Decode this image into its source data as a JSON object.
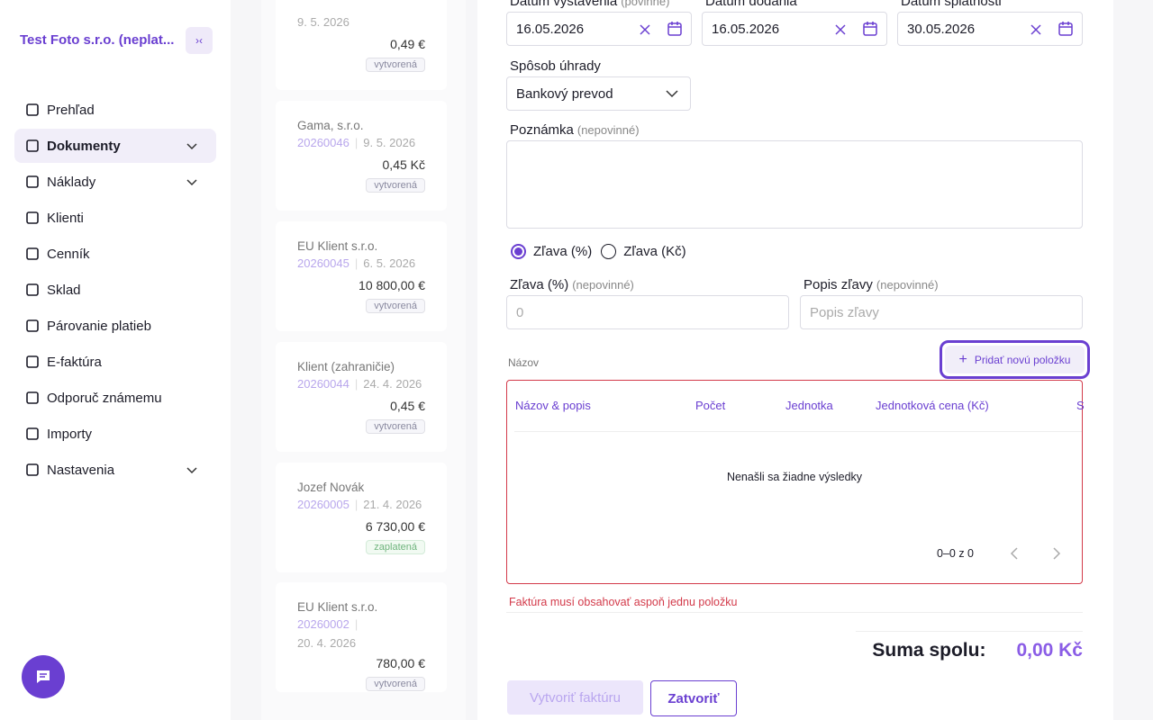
{
  "sidebar": {
    "company": "Test Foto s.r.o. (neplat...",
    "nav": [
      "Prehľad",
      "Dokumenty",
      "Náklady",
      "Klienti",
      "Cenník",
      "Sklad",
      "Párovanie platieb",
      "E-faktúra",
      "Odporuč známemu",
      "Importy",
      "Nastavenia"
    ]
  },
  "documents": [
    {
      "date": "9. 5. 2026",
      "amount": "0,49 €",
      "status": "vytvorená"
    },
    {
      "client": "Gama, s.r.o.",
      "number": "20260046",
      "date": "9. 5. 2026",
      "amount": "0,45 Kč",
      "status": "vytvorená"
    },
    {
      "client": "EU Klient s.r.o.",
      "number": "20260045",
      "date": "6. 5. 2026",
      "amount": "10 800,00 €",
      "status": "vytvorená"
    },
    {
      "client": "Klient (zahraničie)",
      "number": "20260044",
      "date": "24. 4. 2026",
      "amount": "0,45 €",
      "status": "vytvorená"
    },
    {
      "client": "Jozef Novák",
      "number": "20260005",
      "date": "21. 4. 2026",
      "amount": "6 730,00 €",
      "status": "zaplatená"
    },
    {
      "client": "EU Klient s.r.o.",
      "number": "20260002",
      "date": "20. 4. 2026",
      "amount": "780,00 €",
      "status": "vytvorená"
    }
  ],
  "form": {
    "issue_date": {
      "label": "Dátum vystavenia",
      "hint": "(povinné)",
      "value": "16.05.2026"
    },
    "delivery_date": {
      "label": "Dátum dodania",
      "value": "16.05.2026"
    },
    "due_date": {
      "label": "Dátum splatnosti",
      "value": "30.05.2026"
    },
    "payment": {
      "label": "Spôsob úhrady",
      "value": "Bankový prevod"
    },
    "note": {
      "label": "Poznámka",
      "hint": "(nepovinné)"
    },
    "discount_options": [
      "Zľava (%)",
      "Zľava (Kč)"
    ],
    "discount": {
      "label": "Zľava (%)",
      "hint": "(nepovinné)",
      "placeholder": "0"
    },
    "discount_desc": {
      "label": "Popis zľavy",
      "hint": "(nepovinné)",
      "placeholder": "Popis zľavy"
    },
    "items_label": "Názov",
    "add_button": "Pridať novú položku",
    "table": {
      "columns": [
        "Názov & popis",
        "Počet",
        "Jednotka",
        "Jednotková cena (Kč)",
        "S"
      ],
      "empty": "Nenašli sa žiadne výsledky",
      "pagination": "0–0 z 0"
    },
    "error": "Faktúra musí obsahovať aspoň jednu položku",
    "total_label": "Suma spolu:",
    "total": "0,00 Kč",
    "submit": "Vytvoriť faktúru",
    "close": "Zatvoriť"
  }
}
